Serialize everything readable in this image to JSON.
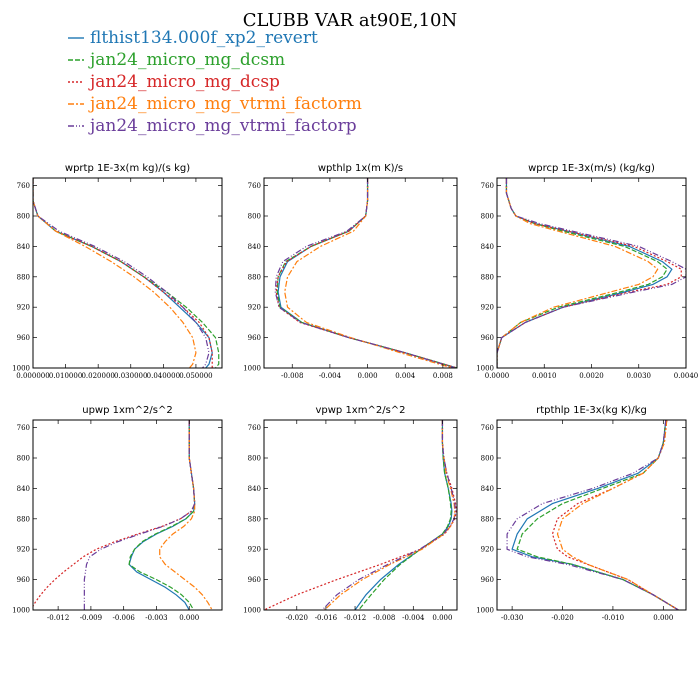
{
  "title": "CLUBB VAR at90E,10N",
  "legend": [
    {
      "label": "flthist134.000f_xp2_revert",
      "color": "#1f77b4",
      "dash": ""
    },
    {
      "label": "jan24_micro_mg_dcsm",
      "color": "#2ca02c",
      "dash": "5,2"
    },
    {
      "label": "jan24_micro_mg_dcsp",
      "color": "#d62728",
      "dash": "2,2"
    },
    {
      "label": "jan24_micro_mg_vtrmi_factorm",
      "color": "#ff7f0e",
      "dash": "6,2,2,2"
    },
    {
      "label": "jan24_micro_mg_vtrmi_factorp",
      "color": "#6a3d9a",
      "dash": "6,2,1,2,1,2"
    }
  ],
  "chart_data": [
    {
      "type": "line",
      "title": "wprtp  1E-3x(m kg)/(s kg)",
      "xlim": [
        0.0,
        0.058
      ],
      "ylim": [
        1000,
        750
      ],
      "xticks": [
        0.0,
        0.01,
        0.02,
        0.03,
        0.04,
        0.05
      ],
      "xtick_labels": [
        "0.000000",
        "0.010000",
        "0.020000",
        "0.030000",
        "0.040000",
        "0.050000"
      ],
      "yticks": [
        760,
        800,
        840,
        880,
        920,
        960,
        1000
      ],
      "ytick_labels": [
        "760",
        "800",
        "840",
        "880",
        "920",
        "960",
        "1000"
      ],
      "y": [
        750,
        780,
        800,
        820,
        840,
        860,
        880,
        900,
        920,
        940,
        960,
        980,
        995,
        1000
      ],
      "series": [
        {
          "values": [
            0.0,
            0.0,
            0.0015,
            0.007,
            0.018,
            0.027,
            0.034,
            0.04,
            0.045,
            0.05,
            0.054,
            0.055,
            0.054,
            0.053
          ]
        },
        {
          "values": [
            0.0,
            0.0,
            0.0015,
            0.007,
            0.018,
            0.027,
            0.034,
            0.041,
            0.047,
            0.052,
            0.056,
            0.057,
            0.057,
            0.056
          ]
        },
        {
          "values": [
            0.0,
            0.0,
            0.0015,
            0.007,
            0.018,
            0.027,
            0.034,
            0.04,
            0.046,
            0.051,
            0.054,
            0.055,
            0.055,
            0.055
          ]
        },
        {
          "values": [
            0.0,
            0.0,
            0.0015,
            0.007,
            0.016,
            0.024,
            0.031,
            0.037,
            0.042,
            0.046,
            0.049,
            0.05,
            0.049,
            0.048
          ]
        },
        {
          "values": [
            0.0,
            0.0,
            0.0015,
            0.008,
            0.019,
            0.028,
            0.035,
            0.041,
            0.046,
            0.05,
            0.053,
            0.054,
            0.053,
            0.052
          ]
        }
      ]
    },
    {
      "type": "line",
      "title": "wpthlp  1x(m K)/s",
      "xlim": [
        -0.011,
        0.0095
      ],
      "ylim": [
        1000,
        750
      ],
      "xticks": [
        -0.008,
        -0.004,
        0.0,
        0.004,
        0.008
      ],
      "xtick_labels": [
        "-0.008",
        "-0.004",
        "0.000",
        "0.004",
        "0.008"
      ],
      "yticks": [
        760,
        800,
        840,
        880,
        920,
        960,
        1000
      ],
      "ytick_labels": [
        "760",
        "800",
        "840",
        "880",
        "920",
        "960",
        "1000"
      ],
      "y": [
        750,
        780,
        800,
        820,
        840,
        860,
        880,
        900,
        920,
        940,
        960,
        980,
        1000
      ],
      "series": [
        {
          "values": [
            0.0,
            0.0,
            -0.0002,
            -0.002,
            -0.006,
            -0.0085,
            -0.0093,
            -0.0095,
            -0.0092,
            -0.007,
            -0.002,
            0.004,
            0.0095
          ]
        },
        {
          "values": [
            0.0,
            0.0,
            -0.0002,
            -0.002,
            -0.006,
            -0.0087,
            -0.0095,
            -0.0096,
            -0.0093,
            -0.007,
            -0.002,
            0.004,
            0.0095
          ]
        },
        {
          "values": [
            0.0,
            0.0,
            -0.0002,
            -0.002,
            -0.006,
            -0.0086,
            -0.0095,
            -0.0097,
            -0.0094,
            -0.0072,
            -0.002,
            0.004,
            0.0095
          ]
        },
        {
          "values": [
            0.0,
            0.0,
            -0.0002,
            -0.0015,
            -0.005,
            -0.0075,
            -0.0085,
            -0.0088,
            -0.0085,
            -0.0065,
            -0.0018,
            0.0035,
            0.009
          ]
        },
        {
          "values": [
            0.0,
            0.0,
            -0.0002,
            -0.0022,
            -0.0065,
            -0.009,
            -0.0097,
            -0.0098,
            -0.0094,
            -0.0071,
            -0.002,
            0.004,
            0.0093
          ]
        }
      ]
    },
    {
      "type": "line",
      "title": "wprcp  1E-3x(m/s) (kg/kg)",
      "xlim": [
        0.0,
        0.004
      ],
      "ylim": [
        1000,
        750
      ],
      "xticks": [
        0.0,
        0.001,
        0.002,
        0.003,
        0.004
      ],
      "xtick_labels": [
        "0.0000",
        "0.0010",
        "0.0020",
        "0.0030",
        "0.0040"
      ],
      "yticks": [
        760,
        800,
        840,
        880,
        920,
        960,
        1000
      ],
      "ytick_labels": [
        "760",
        "800",
        "840",
        "880",
        "920",
        "960",
        "1000"
      ],
      "y": [
        750,
        770,
        790,
        800,
        810,
        820,
        840,
        860,
        870,
        880,
        890,
        900,
        920,
        940,
        960,
        980,
        1000
      ],
      "series": [
        {
          "values": [
            0.0002,
            0.0002,
            0.0003,
            0.0004,
            0.0008,
            0.0015,
            0.0028,
            0.0035,
            0.0037,
            0.0036,
            0.0033,
            0.0027,
            0.0014,
            0.0006,
            0.0001,
            0.0,
            0.0
          ]
        },
        {
          "values": [
            0.0002,
            0.0002,
            0.0003,
            0.0004,
            0.0008,
            0.0014,
            0.0027,
            0.0034,
            0.0036,
            0.0035,
            0.0032,
            0.0026,
            0.0013,
            0.0005,
            0.0001,
            0.0,
            0.0
          ]
        },
        {
          "values": [
            0.0002,
            0.0002,
            0.0003,
            0.0004,
            0.0008,
            0.0015,
            0.0029,
            0.0036,
            0.0039,
            0.0039,
            0.0036,
            0.0028,
            0.0014,
            0.0006,
            0.0001,
            0.0,
            0.0
          ]
        },
        {
          "values": [
            0.0002,
            0.0002,
            0.0003,
            0.0004,
            0.0007,
            0.0013,
            0.0025,
            0.0032,
            0.0034,
            0.0033,
            0.003,
            0.0024,
            0.0012,
            0.0005,
            0.0001,
            0.0,
            0.0
          ]
        },
        {
          "values": [
            0.0002,
            0.0002,
            0.0003,
            0.0004,
            0.0009,
            0.0016,
            0.003,
            0.0037,
            0.004,
            0.004,
            0.0037,
            0.0029,
            0.0014,
            0.0006,
            0.0001,
            0.0,
            0.0
          ]
        }
      ]
    },
    {
      "type": "line",
      "title": "upwp  1xm^2/s^2",
      "xlim": [
        -0.0143,
        0.003
      ],
      "ylim": [
        1000,
        750
      ],
      "xticks": [
        -0.012,
        -0.009,
        -0.006,
        -0.003,
        0.0
      ],
      "xtick_labels": [
        "-0.012",
        "-0.009",
        "-0.006",
        "-0.003",
        "0.000"
      ],
      "yticks": [
        760,
        800,
        840,
        880,
        920,
        960,
        1000
      ],
      "ytick_labels": [
        "760",
        "800",
        "840",
        "880",
        "920",
        "960",
        "1000"
      ],
      "y": [
        750,
        780,
        800,
        820,
        840,
        860,
        870,
        880,
        890,
        900,
        910,
        920,
        930,
        940,
        950,
        960,
        970,
        980,
        990,
        1000
      ],
      "series": [
        {
          "values": [
            0.0,
            0.0,
            0.0,
            0.0002,
            0.0004,
            0.0005,
            0.0004,
            -0.0003,
            -0.0015,
            -0.003,
            -0.0042,
            -0.005,
            -0.0053,
            -0.0055,
            -0.0048,
            -0.0035,
            -0.0022,
            -0.0012,
            -0.0004,
            0.0
          ]
        },
        {
          "values": [
            0.0,
            0.0,
            0.0,
            0.0002,
            0.0004,
            0.0005,
            0.0004,
            -0.0003,
            -0.0016,
            -0.0031,
            -0.0043,
            -0.005,
            -0.0054,
            -0.0055,
            -0.0045,
            -0.003,
            -0.0017,
            -0.0007,
            0.0,
            0.0004
          ]
        },
        {
          "values": [
            0.0,
            0.0,
            0.0,
            0.0002,
            0.0004,
            0.0005,
            0.0002,
            -0.0008,
            -0.0025,
            -0.0047,
            -0.0068,
            -0.0085,
            -0.0097,
            -0.0106,
            -0.0115,
            -0.0123,
            -0.013,
            -0.0136,
            -0.0141,
            -0.0145
          ]
        },
        {
          "values": [
            0.0,
            0.0,
            0.0,
            0.0002,
            0.0004,
            0.0005,
            0.0005,
            0.0002,
            -0.0005,
            -0.0015,
            -0.0022,
            -0.0027,
            -0.0027,
            -0.0022,
            -0.0013,
            -0.0004,
            0.0005,
            0.0012,
            0.0017,
            0.0021
          ]
        },
        {
          "values": [
            0.0,
            0.0,
            0.0,
            0.0002,
            0.0004,
            0.0005,
            0.0002,
            -0.0008,
            -0.0024,
            -0.0045,
            -0.0065,
            -0.0081,
            -0.0091,
            -0.0094,
            -0.0095,
            -0.0096,
            -0.0096,
            -0.0096,
            -0.0096,
            -0.0096
          ]
        }
      ]
    },
    {
      "type": "line",
      "title": "vpwp  1xm^2/s^2",
      "xlim": [
        -0.0245,
        0.002
      ],
      "ylim": [
        1000,
        750
      ],
      "xticks": [
        -0.02,
        -0.016,
        -0.012,
        -0.008,
        -0.004,
        0.0
      ],
      "xtick_labels": [
        "-0.020",
        "-0.016",
        "-0.012",
        "-0.008",
        "-0.004",
        "0.000"
      ],
      "yticks": [
        760,
        800,
        840,
        880,
        920,
        960,
        1000
      ],
      "ytick_labels": [
        "760",
        "800",
        "840",
        "880",
        "920",
        "960",
        "1000"
      ],
      "y": [
        750,
        780,
        800,
        820,
        840,
        860,
        870,
        880,
        890,
        900,
        920,
        940,
        960,
        980,
        1000
      ],
      "series": [
        {
          "values": [
            0.0,
            0.0,
            0.0001,
            0.0003,
            0.0008,
            0.0012,
            0.0013,
            0.0012,
            0.0008,
            0.0,
            -0.003,
            -0.006,
            -0.0085,
            -0.0105,
            -0.012
          ]
        },
        {
          "values": [
            0.0,
            0.0,
            0.0001,
            0.0003,
            0.0008,
            0.0011,
            0.0012,
            0.0011,
            0.0007,
            0.0,
            -0.003,
            -0.0058,
            -0.008,
            -0.0098,
            -0.0115
          ]
        },
        {
          "values": [
            0.0,
            0.0,
            0.0002,
            0.0006,
            0.0013,
            0.0018,
            0.0019,
            0.0017,
            0.0011,
            0.0003,
            -0.003,
            -0.0085,
            -0.0145,
            -0.02,
            -0.0245
          ]
        },
        {
          "values": [
            0.0,
            0.0,
            0.0002,
            0.0005,
            0.0011,
            0.0016,
            0.0017,
            0.0016,
            0.0011,
            0.0002,
            -0.0028,
            -0.0072,
            -0.011,
            -0.014,
            -0.0162
          ]
        },
        {
          "values": [
            0.0,
            0.0,
            0.0002,
            0.0006,
            0.0012,
            0.0017,
            0.0018,
            0.0016,
            0.001,
            0.0001,
            -0.0031,
            -0.0075,
            -0.0115,
            -0.0145,
            -0.0165
          ]
        }
      ]
    },
    {
      "type": "line",
      "title": "rtpthlp  1E-3x(kg K)/kg",
      "xlim": [
        -0.033,
        0.0045
      ],
      "ylim": [
        1000,
        750
      ],
      "xticks": [
        -0.03,
        -0.02,
        -0.01,
        0.0
      ],
      "xtick_labels": [
        "-0.030",
        "-0.020",
        "-0.010",
        "0.000"
      ],
      "yticks": [
        760,
        800,
        840,
        880,
        920,
        960,
        1000
      ],
      "ytick_labels": [
        "760",
        "800",
        "840",
        "880",
        "920",
        "960",
        "1000"
      ],
      "y": [
        750,
        780,
        800,
        820,
        840,
        860,
        880,
        900,
        920,
        930,
        940,
        960,
        980,
        1000
      ],
      "series": [
        {
          "values": [
            0.0005,
            0.0,
            -0.001,
            -0.005,
            -0.013,
            -0.022,
            -0.027,
            -0.029,
            -0.03,
            -0.026,
            -0.018,
            -0.008,
            -0.002,
            0.003
          ]
        },
        {
          "values": [
            0.0005,
            0.0,
            -0.001,
            -0.004,
            -0.012,
            -0.02,
            -0.025,
            -0.028,
            -0.029,
            -0.025,
            -0.018,
            -0.008,
            -0.002,
            0.003
          ]
        },
        {
          "values": [
            0.0007,
            0.0002,
            -0.001,
            -0.004,
            -0.01,
            -0.017,
            -0.021,
            -0.022,
            -0.021,
            -0.019,
            -0.015,
            -0.007,
            -0.002,
            0.003
          ]
        },
        {
          "values": [
            0.0007,
            0.0002,
            -0.001,
            -0.004,
            -0.01,
            -0.016,
            -0.02,
            -0.021,
            -0.02,
            -0.018,
            -0.015,
            -0.007,
            -0.002,
            0.003
          ]
        },
        {
          "values": [
            0.0005,
            0.0,
            -0.001,
            -0.006,
            -0.014,
            -0.024,
            -0.029,
            -0.031,
            -0.031,
            -0.027,
            -0.019,
            -0.008,
            -0.002,
            0.003
          ]
        }
      ]
    }
  ]
}
